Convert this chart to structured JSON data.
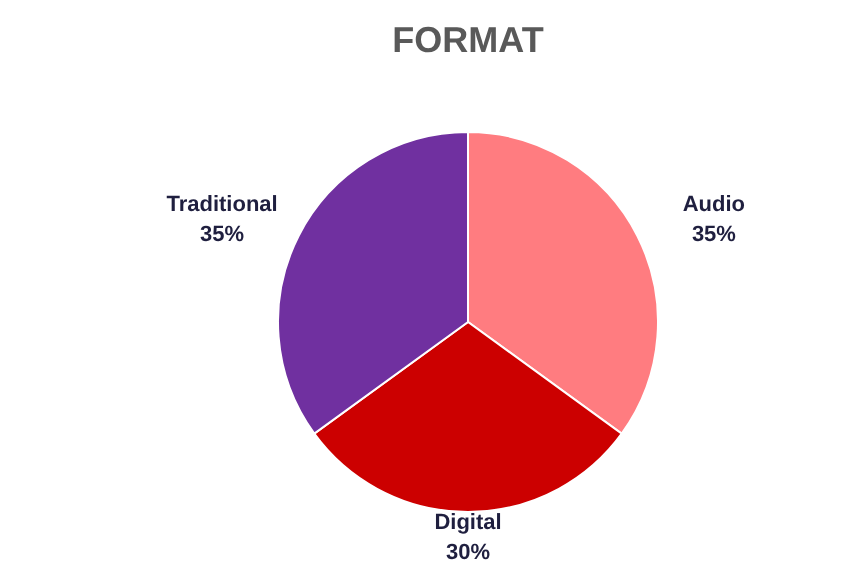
{
  "chart_data": {
    "type": "pie",
    "title": "FORMAT",
    "categories": [
      "Audio",
      "Digital",
      "Traditional"
    ],
    "values": [
      35,
      30,
      35
    ],
    "colors": [
      "#ff7c80",
      "#cc0000",
      "#7030a0"
    ],
    "value_labels": [
      "35%",
      "30%",
      "35%"
    ],
    "legend": false
  }
}
